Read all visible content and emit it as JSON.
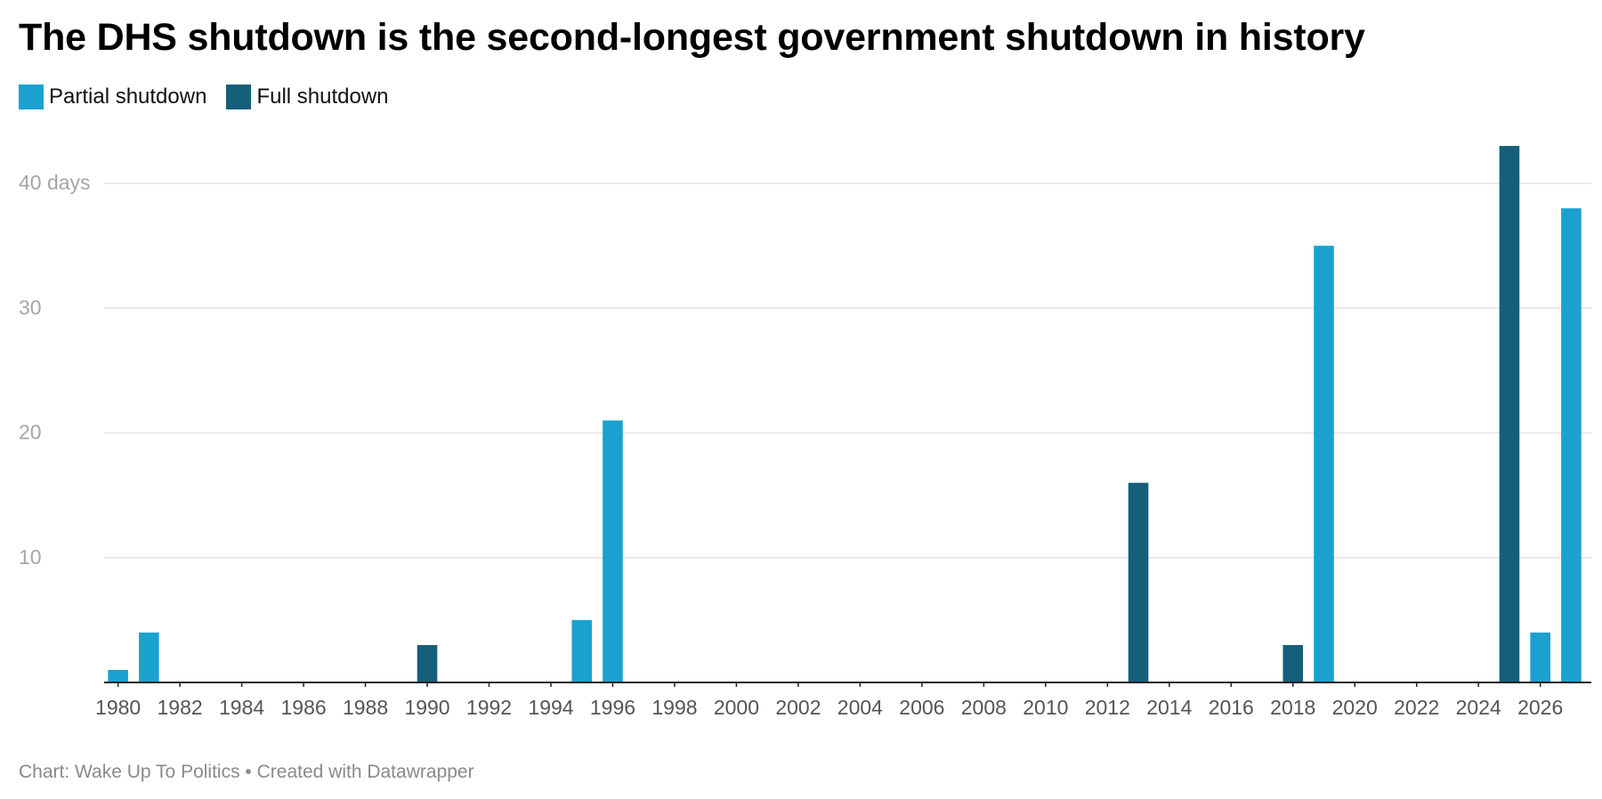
{
  "title": "The DHS shutdown is the second-longest government shutdown in history",
  "legend": [
    {
      "label": "Partial shutdown",
      "color": "#1aa1d0"
    },
    {
      "label": "Full shutdown",
      "color": "#155f7a"
    }
  ],
  "footer": "Chart: Wake Up To Politics • Created with Datawrapper",
  "chart_data": {
    "type": "bar",
    "title": "The DHS shutdown is the second-longest government shutdown in history",
    "xlabel": "",
    "ylabel": "days",
    "xlim": [
      1979.55,
      2027.65
    ],
    "ylim": [
      0,
      44
    ],
    "x_ticks": [
      "1980",
      "1982",
      "1984",
      "1986",
      "1988",
      "1990",
      "1992",
      "1994",
      "1996",
      "1998",
      "2000",
      "2002",
      "2004",
      "2006",
      "2008",
      "2010",
      "2012",
      "2014",
      "2016",
      "2018",
      "2020",
      "2022",
      "2024",
      "2026"
    ],
    "y_ticks": [
      {
        "value": 10,
        "label": "10"
      },
      {
        "value": 20,
        "label": "20"
      },
      {
        "value": 30,
        "label": "30"
      },
      {
        "value": 40,
        "label": "40 days"
      }
    ],
    "grid": true,
    "legend_position": "top-left",
    "series": [
      {
        "name": "Partial shutdown",
        "color": "#1aa1d0",
        "points": [
          {
            "year": 1980,
            "days": 1
          },
          {
            "year": 1981,
            "days": 4
          },
          {
            "year": 1995,
            "days": 5
          },
          {
            "year": 1996,
            "days": 21
          },
          {
            "year": 2019,
            "days": 35
          },
          {
            "year": 2026,
            "days": 4
          },
          {
            "year": 2027,
            "days": 38
          }
        ]
      },
      {
        "name": "Full shutdown",
        "color": "#155f7a",
        "points": [
          {
            "year": 1990,
            "days": 3
          },
          {
            "year": 2013,
            "days": 16
          },
          {
            "year": 2018,
            "days": 3
          },
          {
            "year": 2025,
            "days": 43
          }
        ]
      }
    ]
  }
}
